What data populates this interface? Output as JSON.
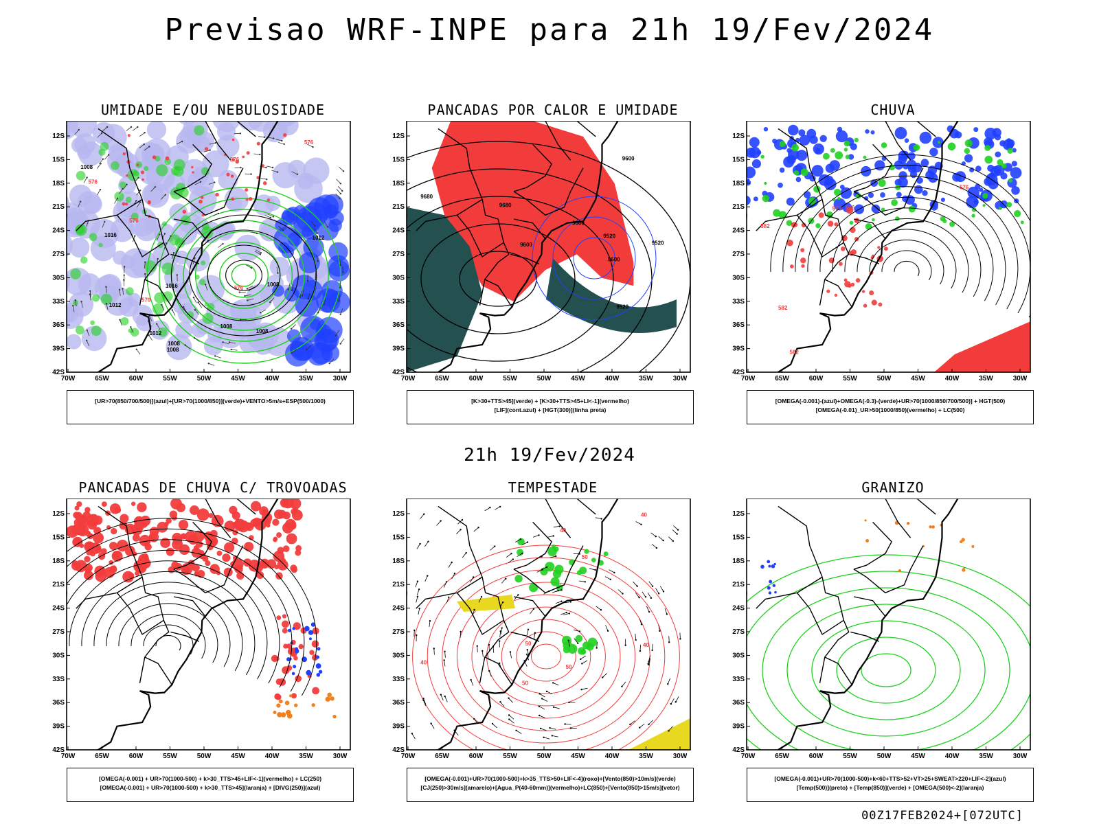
{
  "main_title": "Previsao WRF-INPE  para 21h 19/Fev/2024",
  "mid_title": "21h 19/Fev/2024",
  "footer": "00Z17FEB2024+[072UTC]",
  "axes": {
    "lat_ticks": [
      "12S",
      "15S",
      "18S",
      "21S",
      "24S",
      "27S",
      "30S",
      "33S",
      "36S",
      "39S",
      "42S"
    ],
    "lon_ticks": [
      "70W",
      "65W",
      "60W",
      "55W",
      "50W",
      "45W",
      "40W",
      "35W",
      "30W"
    ]
  },
  "colors": {
    "red": "#f23c3c",
    "green": "#1fd01f",
    "blue": "#2040ff",
    "lavender": "#b8b8f0",
    "dark_teal": "#245050",
    "orange": "#f08020",
    "yellow": "#e8d820",
    "black": "#000000"
  },
  "panels": [
    {
      "title": "UMIDADE E/OU NEBULOSIDADE",
      "legend": [
        "[UR>70(850/700/500)](azul)+[UR>70(1000/850)](verde)+VENTO>5m/s+ESP(500/1000)"
      ],
      "labels": [
        "1008",
        "1008",
        "1012",
        "1008",
        "1012",
        "1008",
        "1016",
        "1008",
        "1012",
        "1016",
        "1008",
        "576",
        "576",
        "576",
        "576",
        "576",
        "570"
      ],
      "layers": [
        "humidity-blue",
        "humidity-green",
        "wind-vectors",
        "pressure-contours",
        "thickness-red"
      ]
    },
    {
      "title": "PANCADAS POR CALOR E UMIDADE",
      "legend": [
        "[K>30+TTS>45](verde) + [K>30+TTS>45+LI<-1](vermelho)",
        "[LIF](cont.azul) + [HGT(300)](linha preta)"
      ],
      "labels": [
        "9680",
        "9680",
        "9600",
        "9600",
        "9600",
        "9520",
        "9520",
        "9600",
        "9520"
      ],
      "layers": [
        "red-fill",
        "teal-fill",
        "lif-blue",
        "hgt-black"
      ]
    },
    {
      "title": "CHUVA",
      "legend": [
        "[OMEGA(-0.001)-(azul)+OMEGA(-0.3)-(verde)+UR>70(1000/850/700/500)] + HGT(500)",
        "[OMEGA(-0.01)_UR>50(1000/850)(vermelho) + LC(500)"
      ],
      "labels": [
        "582",
        "582",
        "576",
        "576",
        "573",
        "582"
      ],
      "layers": [
        "blue",
        "green",
        "red",
        "streamlines"
      ]
    },
    {
      "title": "PANCADAS DE CHUVA C/ TROVOADAS",
      "legend": [
        "[OMEGA(-0.001) + UR>70(1000-500) + k>30_TTS>45+LIF<-1](vermelho) + LC(250)",
        "[OMEGA(-0.001) + UR>70(1000-500) + k>30_TTS>45](laranja) + [DIVG(250)](azul)"
      ],
      "labels": [],
      "layers": [
        "red",
        "orange",
        "blue",
        "streamlines"
      ]
    },
    {
      "title": "TEMPESTADE",
      "legend": [
        "[OMEGA(-0.001)+UR>70(1000-500)+k>35_TTS>50+LIF<-4](roxo)+[Vento(850)>10m/s](verde)",
        "[CJ(250)>30m/s](amarelo)+[Agua_P(40-60mm)](vermelho)+LC(850)+[Vento(850)>15m/s](vetor)"
      ],
      "labels": [
        "40",
        "50",
        "50",
        "40",
        "50",
        "40",
        "50",
        "40"
      ],
      "layers": [
        "green",
        "yellow",
        "red-contours",
        "wind-vectors"
      ]
    },
    {
      "title": "GRANIZO",
      "legend": [
        "[OMEGA(-0.001)+UR>70(1000-500)+k<60+TTS>52+VT>25+SWEAT>220+LIF<-2](azul)",
        "[Temp(500)](preto) + [Temp(850)](verde) + [OMEGA(500)<-2](laranja)"
      ],
      "labels": [],
      "layers": [
        "green-contours",
        "orange",
        "blue"
      ]
    }
  ]
}
